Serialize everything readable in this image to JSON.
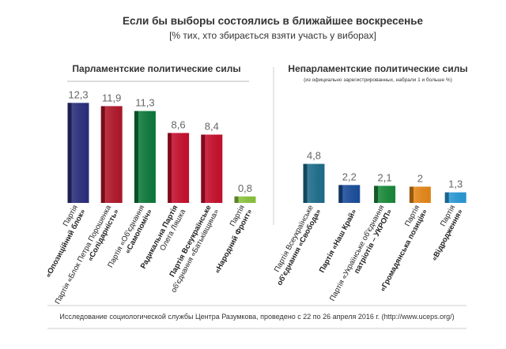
{
  "title": "Если бы выборы состоялись в ближайшее воскресенье",
  "subtitle": "[% тих, хто збирається взяти участь у виборах]",
  "footer": "Исследование социологической службы Центра Разумкова, проведено с 22 по 26 апреля 2016 г. (http://www.uceps.org/)",
  "chart_data": [
    {
      "type": "bar",
      "title": "Парламентские политические силы",
      "categories": [
        [
          "Партія",
          "«Опозиційний блок»"
        ],
        [
          "Партія «Блок Петра Порошенка",
          "«Солідарність»"
        ],
        [
          "Партія «Об'єднання",
          "«Самопоміч»"
        ],
        [
          "Радикальна Партія",
          "Олега Ляшка"
        ],
        [
          "Партія Всеукраїнське",
          "об'єднання «Батьківщина»"
        ],
        [
          "Партія",
          "«Народний Фронт»"
        ]
      ],
      "values": [
        12.3,
        11.9,
        11.3,
        8.6,
        8.4,
        0.8
      ],
      "value_labels": [
        "12,3",
        "11,9",
        "11,3",
        "8,6",
        "8,4",
        "0,8"
      ],
      "colors": [
        "#2b2f7e",
        "#b3182b",
        "#0e7b3c",
        "#c8102e",
        "#c8102e",
        "#8dc63f"
      ]
    },
    {
      "type": "bar",
      "title": "Непарламентские политические силы",
      "subtitle": "(из официально зарегистрированных, набрали 1 и больше %)",
      "categories": [
        [
          "Партія Всеукраїнське",
          "об'єднання «Свобода»"
        ],
        [
          "Партія «Наш Край»"
        ],
        [
          "Партія «Українське об'єднання",
          "патріотів – УКРОП»"
        ],
        [
          "Партія",
          "«Громадянська позиція»"
        ],
        [
          "Партія",
          "«Відродження»"
        ]
      ],
      "values": [
        4.8,
        2.2,
        2.1,
        2,
        1.3
      ],
      "value_labels": [
        "4,8",
        "2,2",
        "2,1",
        "2",
        "1,3"
      ],
      "colors": [
        "#1f6f8e",
        "#1b4f9e",
        "#1a8b3b",
        "#e8891a",
        "#2a9bd8"
      ]
    }
  ]
}
